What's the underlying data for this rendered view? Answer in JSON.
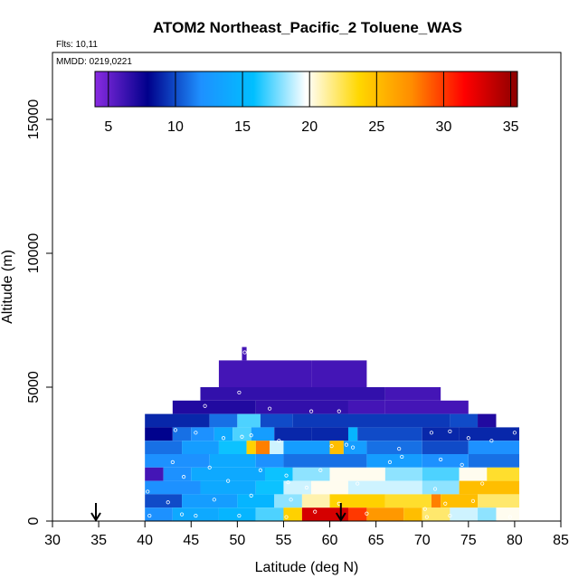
{
  "chart_data": {
    "type": "heatmap",
    "title": "ATOM2 Northeast_Pacific_2 Toluene_WAS",
    "flights_label": "Flts: 10,11",
    "dates_label": "MMDD: 0219,0221",
    "xlabel": "Latitude (deg N)",
    "ylabel": "Altitude (m)",
    "xlim": [
      30,
      85
    ],
    "ylim": [
      0,
      17500
    ],
    "x_ticks": [
      30,
      35,
      40,
      45,
      50,
      55,
      60,
      65,
      70,
      75,
      80,
      85
    ],
    "y_ticks": [
      0,
      5000,
      10000,
      15000
    ],
    "colorbar": {
      "range": [
        4,
        35.5
      ],
      "ticks": [
        5,
        10,
        15,
        20,
        25,
        30,
        35
      ],
      "palette": [
        "#8a2be2",
        "#00008b",
        "#1e90ff",
        "#00bfff",
        "#ffffff",
        "#ffd700",
        "#ff8c00",
        "#ff0000",
        "#8b0000"
      ]
    },
    "markers": [
      {
        "name": "arrow-left",
        "lat": 34.7
      },
      {
        "name": "arrow-right",
        "lat": 61.2
      }
    ],
    "altitude_bands": [
      {
        "alt": [
          6000,
          6500
        ],
        "segments": [
          [
            50.5,
            51,
            6
          ]
        ]
      },
      {
        "alt": [
          5000,
          6000
        ],
        "segments": [
          [
            48,
            58,
            6
          ],
          [
            58,
            64,
            6
          ]
        ]
      },
      {
        "alt": [
          4500,
          5000
        ],
        "segments": [
          [
            46,
            66,
            6.5
          ],
          [
            66,
            72,
            6
          ]
        ]
      },
      {
        "alt": [
          4000,
          4500
        ],
        "segments": [
          [
            43,
            52,
            7
          ],
          [
            52,
            62,
            6.5
          ],
          [
            62,
            66,
            6
          ],
          [
            66,
            75,
            6
          ]
        ]
      },
      {
        "alt": [
          3500,
          4000
        ],
        "segments": [
          [
            40,
            47,
            9
          ],
          [
            47,
            50,
            11
          ],
          [
            50,
            52.5,
            17
          ],
          [
            52.5,
            56,
            10
          ],
          [
            56,
            73,
            9.5
          ],
          [
            73,
            76,
            10
          ],
          [
            76,
            78,
            7
          ]
        ]
      },
      {
        "alt": [
          3000,
          3500
        ],
        "segments": [
          [
            40,
            43,
            8
          ],
          [
            43,
            45,
            11
          ],
          [
            45,
            47.5,
            12
          ],
          [
            47.5,
            49.5,
            14
          ],
          [
            49.5,
            51.5,
            17
          ],
          [
            51.5,
            54,
            13
          ],
          [
            54,
            58,
            9
          ],
          [
            58,
            62,
            9
          ],
          [
            62,
            63,
            15
          ],
          [
            63,
            70,
            10
          ],
          [
            70,
            74,
            9
          ],
          [
            74,
            80.5,
            9
          ]
        ]
      },
      {
        "alt": [
          2500,
          3000
        ],
        "segments": [
          [
            40,
            44,
            11
          ],
          [
            44,
            48,
            13
          ],
          [
            48,
            51,
            16
          ],
          [
            51,
            52,
            24
          ],
          [
            52,
            53.5,
            28
          ],
          [
            53.5,
            55,
            19
          ],
          [
            55,
            60,
            13
          ],
          [
            60,
            61.5,
            25
          ],
          [
            61.5,
            64,
            13
          ],
          [
            64,
            70,
            11
          ],
          [
            70,
            75,
            10
          ],
          [
            75,
            80.5,
            12
          ]
        ]
      },
      {
        "alt": [
          2000,
          2500
        ],
        "segments": [
          [
            40,
            47,
            12
          ],
          [
            47,
            52,
            14
          ],
          [
            52,
            55,
            12
          ],
          [
            55,
            64,
            11
          ],
          [
            64,
            70,
            13
          ],
          [
            70,
            75,
            12
          ],
          [
            75,
            80.5,
            11
          ]
        ]
      },
      {
        "alt": [
          1500,
          2000
        ],
        "segments": [
          [
            40,
            42,
            6
          ],
          [
            42,
            45,
            12
          ],
          [
            45,
            53,
            14
          ],
          [
            53,
            56,
            16
          ],
          [
            56,
            60,
            18
          ],
          [
            60,
            66,
            20
          ],
          [
            66,
            70,
            18
          ],
          [
            70,
            74,
            17
          ],
          [
            74,
            77,
            20
          ],
          [
            77,
            80.5,
            23
          ]
        ]
      },
      {
        "alt": [
          1000,
          1500
        ],
        "segments": [
          [
            40,
            46,
            12
          ],
          [
            46,
            52,
            14
          ],
          [
            52,
            55,
            16
          ],
          [
            55,
            58,
            19
          ],
          [
            58,
            62,
            20
          ],
          [
            62,
            70,
            19
          ],
          [
            70,
            74,
            18
          ],
          [
            74,
            80.5,
            25
          ]
        ]
      },
      {
        "alt": [
          500,
          1000
        ],
        "segments": [
          [
            40,
            44,
            10
          ],
          [
            44,
            50,
            13
          ],
          [
            50,
            54,
            15
          ],
          [
            54,
            57,
            18
          ],
          [
            57,
            60,
            21
          ],
          [
            60,
            66,
            24
          ],
          [
            66,
            71,
            23
          ],
          [
            71,
            72,
            28
          ],
          [
            72,
            76,
            25
          ],
          [
            76,
            80.5,
            22
          ]
        ]
      },
      {
        "alt": [
          0,
          500
        ],
        "segments": [
          [
            40,
            43,
            12
          ],
          [
            43,
            48,
            14
          ],
          [
            48,
            52,
            15
          ],
          [
            52,
            55,
            17
          ],
          [
            55,
            57,
            24
          ],
          [
            57,
            62,
            33
          ],
          [
            62,
            64,
            30
          ],
          [
            64,
            68,
            27
          ],
          [
            68,
            70,
            25
          ],
          [
            70,
            73,
            22
          ],
          [
            73,
            76,
            19
          ],
          [
            76,
            78,
            18
          ],
          [
            78,
            80.5,
            20
          ]
        ]
      }
    ],
    "sample_points": [
      [
        50.8,
        6300
      ],
      [
        50.2,
        4800
      ],
      [
        46.5,
        4300
      ],
      [
        53.5,
        4200
      ],
      [
        58,
        4100
      ],
      [
        61,
        4100
      ],
      [
        74.5,
        4750
      ],
      [
        76.8,
        4200
      ],
      [
        43.3,
        3400
      ],
      [
        45.5,
        3300
      ],
      [
        48.5,
        3100
      ],
      [
        50.5,
        3150
      ],
      [
        51.5,
        3200
      ],
      [
        54.5,
        3000
      ],
      [
        60.2,
        2800
      ],
      [
        61.8,
        2850
      ],
      [
        62.5,
        2750
      ],
      [
        67.5,
        2700
      ],
      [
        71,
        3300
      ],
      [
        73,
        3350
      ],
      [
        75,
        3100
      ],
      [
        77.5,
        3000
      ],
      [
        80,
        3300
      ],
      [
        43,
        2200
      ],
      [
        47,
        2000
      ],
      [
        52.5,
        1900
      ],
      [
        55.3,
        1700
      ],
      [
        59,
        1900
      ],
      [
        66.5,
        2200
      ],
      [
        67.8,
        2400
      ],
      [
        72,
        2300
      ],
      [
        74.3,
        2100
      ],
      [
        44.2,
        1650
      ],
      [
        49,
        1500
      ],
      [
        55.5,
        1450
      ],
      [
        57.5,
        1250
      ],
      [
        63,
        1400
      ],
      [
        71.4,
        1200
      ],
      [
        76.5,
        1400
      ],
      [
        40.3,
        1100
      ],
      [
        42.5,
        700
      ],
      [
        47.5,
        800
      ],
      [
        51.5,
        950
      ],
      [
        55.8,
        800
      ],
      [
        61,
        650
      ],
      [
        70.3,
        450
      ],
      [
        72.5,
        650
      ],
      [
        75.5,
        750
      ],
      [
        40.5,
        200
      ],
      [
        44,
        250
      ],
      [
        45.5,
        200
      ],
      [
        50.2,
        200
      ],
      [
        55.3,
        150
      ],
      [
        58.4,
        350
      ],
      [
        64,
        280
      ],
      [
        70.5,
        150
      ],
      [
        73,
        200
      ],
      [
        79.5,
        150
      ]
    ]
  }
}
